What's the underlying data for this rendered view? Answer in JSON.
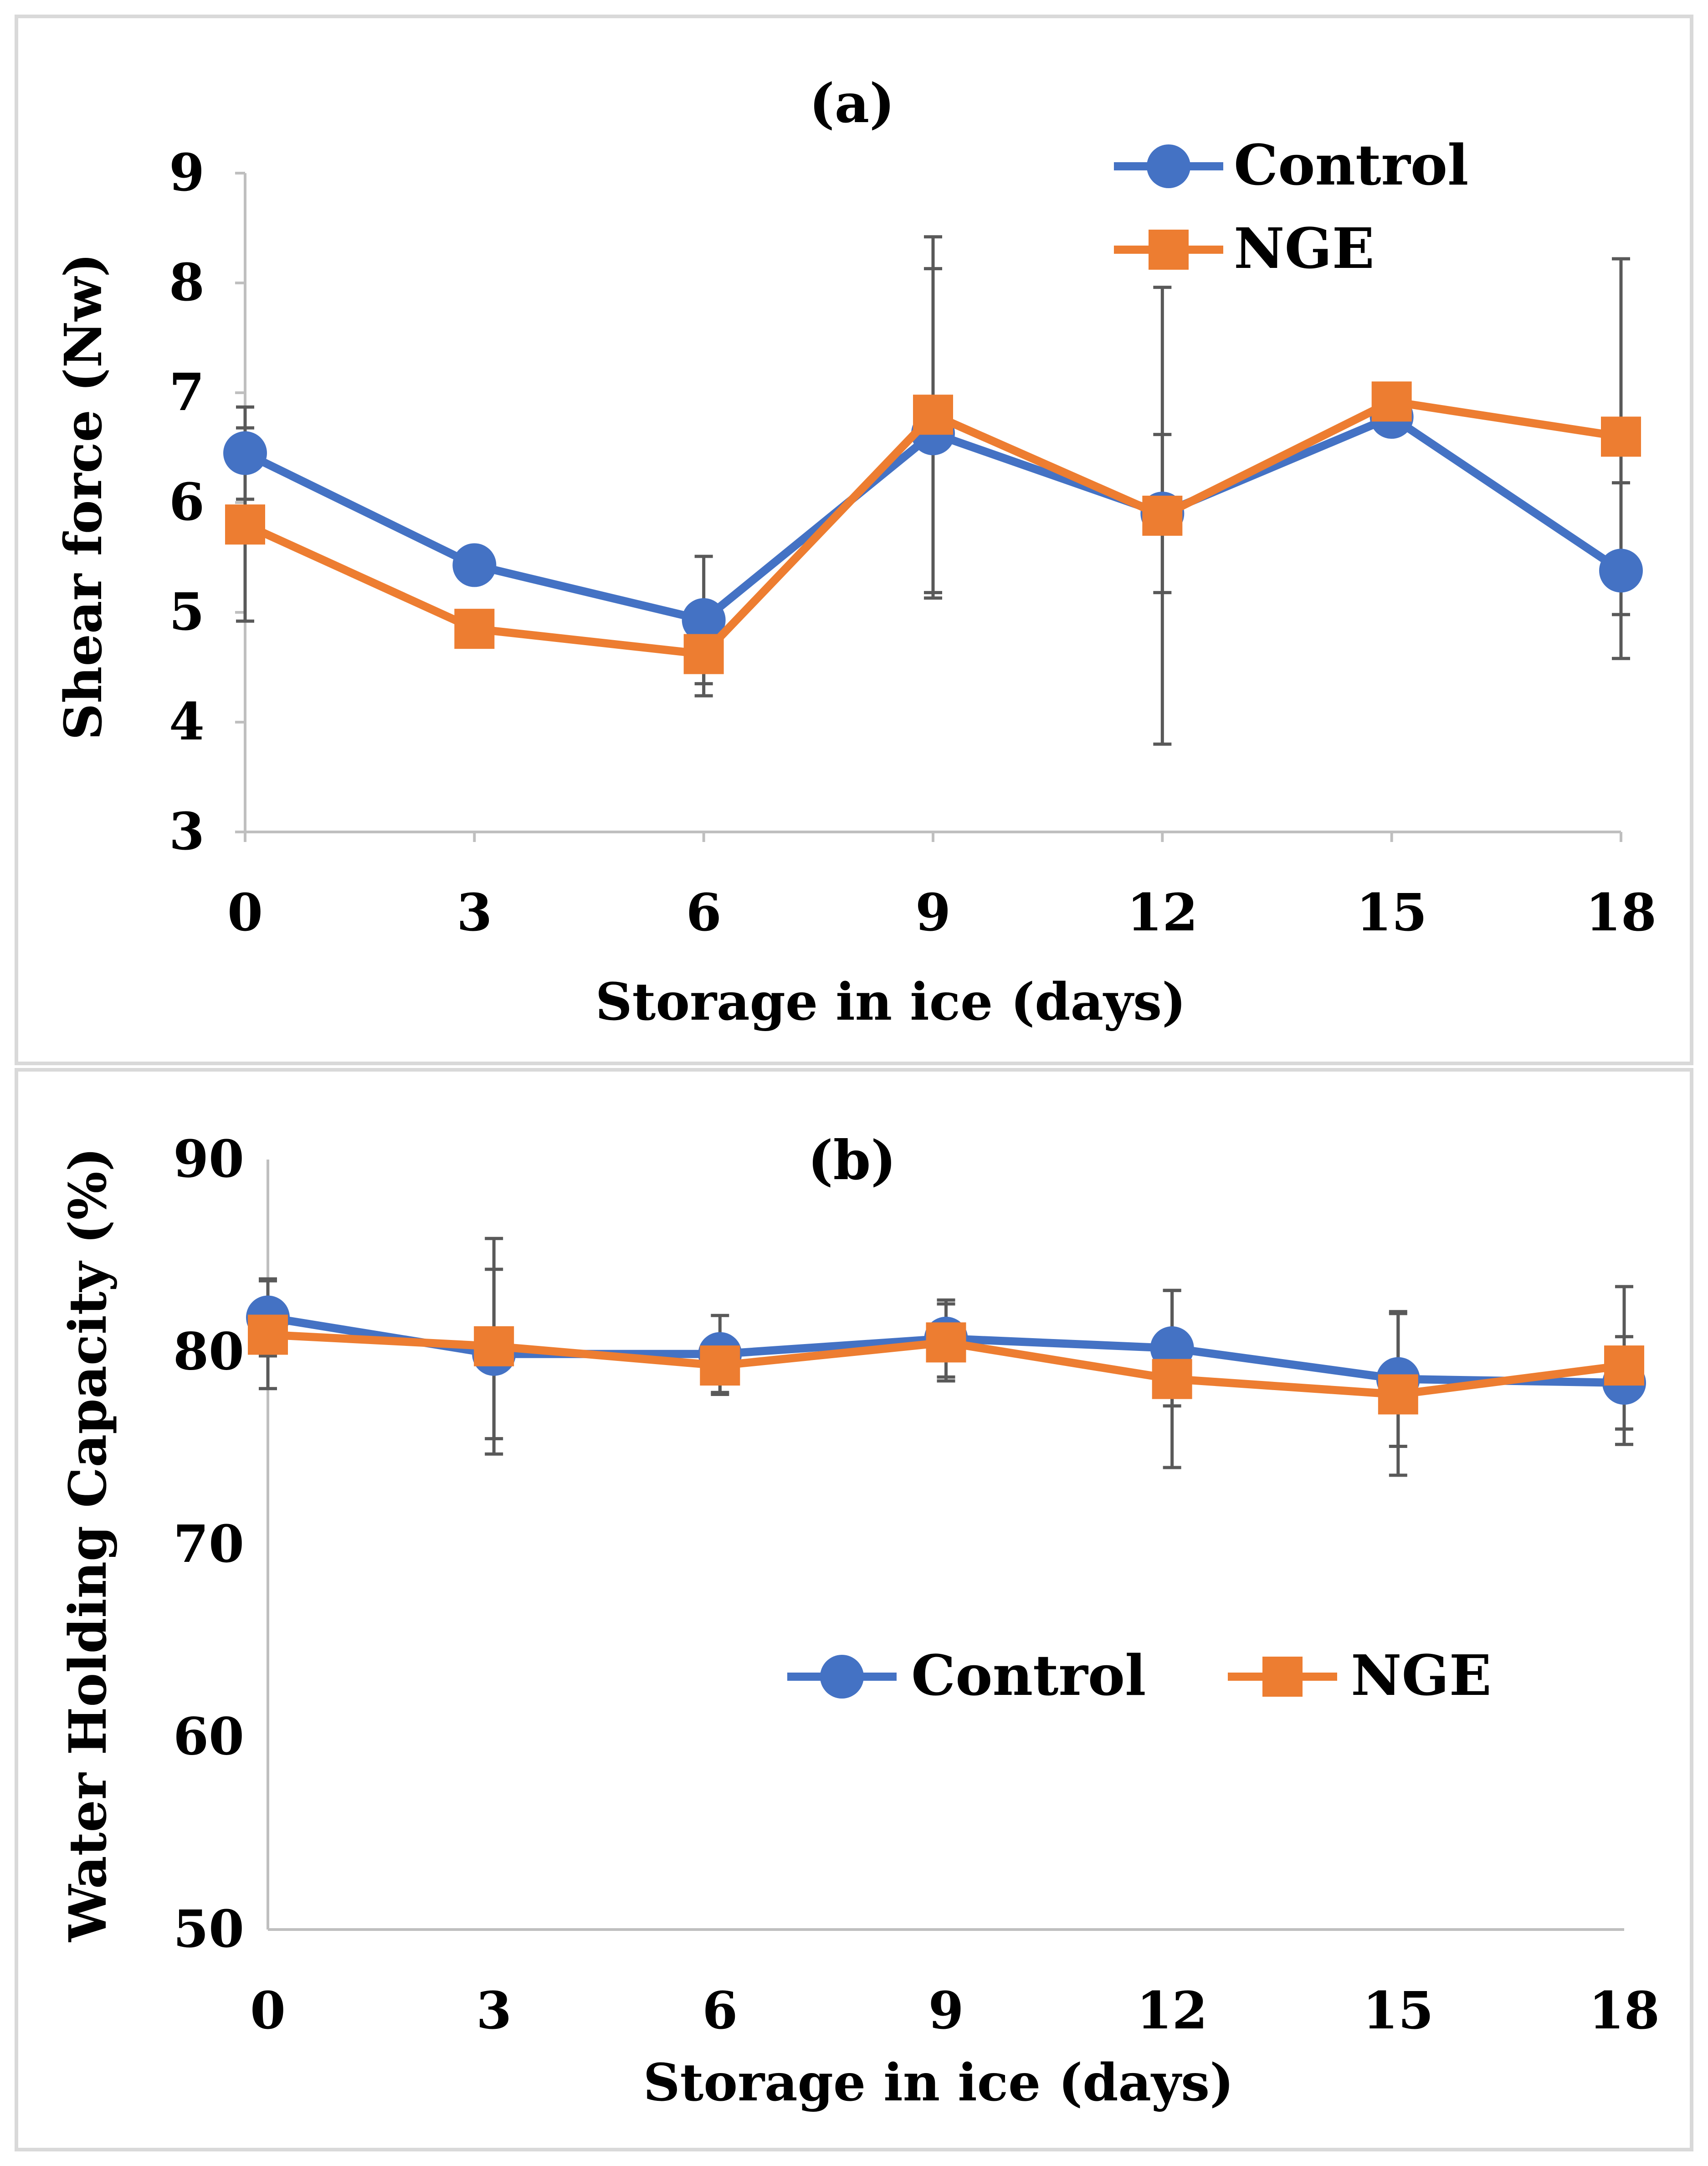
{
  "chart_data": [
    {
      "type": "line",
      "panel": "a",
      "title": "(a)",
      "xlabel": "Storage in ice (days)",
      "ylabel": "Shear force (Nw)",
      "categories": [
        "0",
        "3",
        "6",
        "9",
        "12",
        "15",
        "18"
      ],
      "x": [
        0,
        3,
        6,
        9,
        12,
        15,
        18
      ],
      "xlim": [
        0,
        18
      ],
      "ylim": [
        3,
        9
      ],
      "yticks": [
        3,
        4,
        5,
        6,
        7,
        8,
        9
      ],
      "grid": false,
      "legend_position": "top-right",
      "series": [
        {
          "name": "Control",
          "color": "#4472c4",
          "marker": "circle",
          "values": [
            6.45,
            5.43,
            4.93,
            6.63,
            5.9,
            6.78,
            5.38
          ],
          "error": [
            0.42,
            0.0,
            0.58,
            1.5,
            0.72,
            0.0,
            0.8
          ]
        },
        {
          "name": "NGE",
          "color": "#ed7d31",
          "marker": "square",
          "values": [
            5.8,
            4.85,
            4.62,
            6.8,
            5.88,
            6.92,
            6.6
          ],
          "error": [
            0.88,
            0.0,
            0.38,
            1.62,
            2.08,
            0.0,
            1.62
          ]
        }
      ]
    },
    {
      "type": "line",
      "panel": "b",
      "title": "(b)",
      "xlabel": "Storage in ice (days)",
      "ylabel": "Water Holding Capacity (%)",
      "categories": [
        "0",
        "3",
        "6",
        "9",
        "12",
        "15",
        "18"
      ],
      "x": [
        0,
        3,
        6,
        9,
        12,
        15,
        18
      ],
      "xlim": [
        0,
        18
      ],
      "ylim": [
        50,
        90
      ],
      "yticks": [
        50,
        60,
        70,
        80,
        90
      ],
      "grid": false,
      "legend_position": "center",
      "series": [
        {
          "name": "Control",
          "color": "#4472c4",
          "marker": "circle",
          "values": [
            81.8,
            79.9,
            79.9,
            80.7,
            80.2,
            78.6,
            78.4
          ],
          "error": [
            2.0,
            4.4,
            2.0,
            2.0,
            3.0,
            3.5,
            2.4
          ]
        },
        {
          "name": "NGE",
          "color": "#ed7d31",
          "marker": "square",
          "values": [
            80.9,
            80.3,
            79.3,
            80.5,
            78.6,
            77.8,
            79.3
          ],
          "error": [
            2.8,
            5.6,
            1.5,
            2.0,
            4.6,
            4.2,
            4.1
          ]
        }
      ]
    }
  ]
}
